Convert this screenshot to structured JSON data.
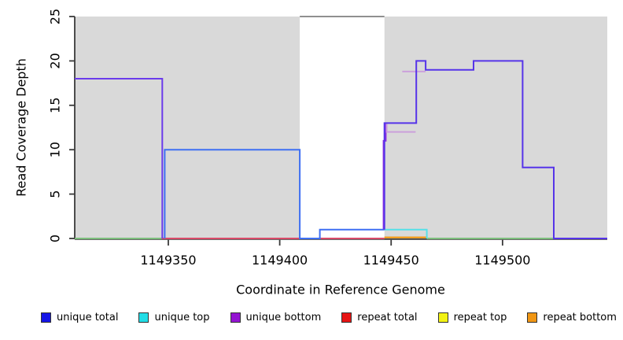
{
  "axes": {
    "y_label": "Read Coverage Depth",
    "x_label": "Coordinate in Reference Genome"
  },
  "legend": {
    "items": [
      {
        "label": "unique total",
        "color": "#1414E6"
      },
      {
        "label": "unique top",
        "color": "#22DDE6"
      },
      {
        "label": "unique bottom",
        "color": "#9414D2"
      },
      {
        "label": "repeat total",
        "color": "#E61414"
      },
      {
        "label": "repeat top",
        "color": "#F2F214"
      },
      {
        "label": "repeat bottom",
        "color": "#F09614"
      }
    ]
  },
  "chart_data": {
    "type": "line",
    "title": "",
    "xlabel": "Coordinate in Reference Genome",
    "ylabel": "Read Coverage Depth",
    "xlim": [
      1149308,
      1149547
    ],
    "ylim": [
      0,
      25
    ],
    "x_ticks": [
      1149350,
      1149400,
      1149450,
      1149500
    ],
    "y_ticks": [
      0,
      5,
      10,
      15,
      20,
      25
    ],
    "grid": false,
    "legend_position": "bottom",
    "background_color": "#FFFFFF",
    "masked_region_color": "#D9D9D9",
    "masked_regions": [
      {
        "x0": 1149308,
        "x1": 1149409
      },
      {
        "x0": 1149447,
        "x1": 1149547
      }
    ],
    "series": [
      {
        "name": "clipped-coverage-25",
        "color": "#909090",
        "width": 2,
        "points": [
          [
            1149409,
            25
          ],
          [
            1149447,
            25
          ]
        ]
      },
      {
        "name": "strand-baseline-left",
        "color": "#7CBE7C",
        "width": 2,
        "points": [
          [
            1149308,
            0
          ],
          [
            1149347,
            0
          ]
        ]
      },
      {
        "name": "strand-baseline-right",
        "color": "#7CBE7C",
        "width": 2,
        "points": [
          [
            1149466,
            0
          ],
          [
            1149523,
            0
          ]
        ]
      },
      {
        "name": "repeat-total-baseline",
        "color": "#D84A68",
        "width": 2,
        "points": [
          [
            1149347,
            0
          ],
          [
            1149447,
            0
          ]
        ]
      },
      {
        "name": "repeat-bottom-baseline",
        "color": "#F59300",
        "width": 2,
        "points": [
          [
            1149447,
            0.12
          ],
          [
            1149466,
            0.12
          ]
        ]
      },
      {
        "name": "unique-top-1",
        "color": "#55E0E8",
        "width": 2,
        "points": [
          [
            1149447,
            1
          ],
          [
            1149466,
            1
          ],
          [
            1149466,
            0
          ]
        ]
      },
      {
        "name": "unique-bottom-rise-step",
        "color": "#8A2BE2",
        "width": 2,
        "points": [
          [
            1149446.6,
            1
          ],
          [
            1149446.6,
            11
          ],
          [
            1149447.6,
            11
          ],
          [
            1149447.6,
            13
          ]
        ]
      },
      {
        "name": "unique-bottom-12",
        "color": "#CBA0DC",
        "width": 2,
        "points": [
          [
            1149448,
            13
          ],
          [
            1149448,
            12
          ],
          [
            1149461,
            12
          ]
        ]
      },
      {
        "name": "unique-bottom-19",
        "color": "#CBA0DC",
        "width": 2,
        "points": [
          [
            1149455,
            18.8
          ],
          [
            1149465.5,
            18.8
          ]
        ]
      },
      {
        "name": "unique-coverage-left-18",
        "color": "#6B3BEB",
        "width": 2,
        "points": [
          [
            1149308,
            18
          ],
          [
            1149347.3,
            18
          ],
          [
            1149347.3,
            0
          ]
        ]
      },
      {
        "name": "unique-total-mid",
        "color": "#3E6FF3",
        "width": 2,
        "points": [
          [
            1149348.4,
            0
          ],
          [
            1149348.4,
            10
          ],
          [
            1149409,
            10
          ],
          [
            1149409,
            0
          ],
          [
            1149418,
            0
          ],
          [
            1149418,
            1
          ],
          [
            1149447,
            1
          ]
        ]
      },
      {
        "name": "unique-coverage-right",
        "color": "#5634E9",
        "width": 2,
        "points": [
          [
            1149447,
            1
          ],
          [
            1149447,
            13
          ],
          [
            1149461.3,
            13
          ],
          [
            1149461.3,
            20
          ],
          [
            1149465.5,
            20
          ],
          [
            1149465.5,
            19
          ],
          [
            1149487,
            19
          ],
          [
            1149487,
            20
          ],
          [
            1149509,
            20
          ],
          [
            1149509,
            8
          ],
          [
            1149523,
            8
          ],
          [
            1149523,
            0
          ],
          [
            1149547,
            0
          ]
        ]
      }
    ]
  }
}
